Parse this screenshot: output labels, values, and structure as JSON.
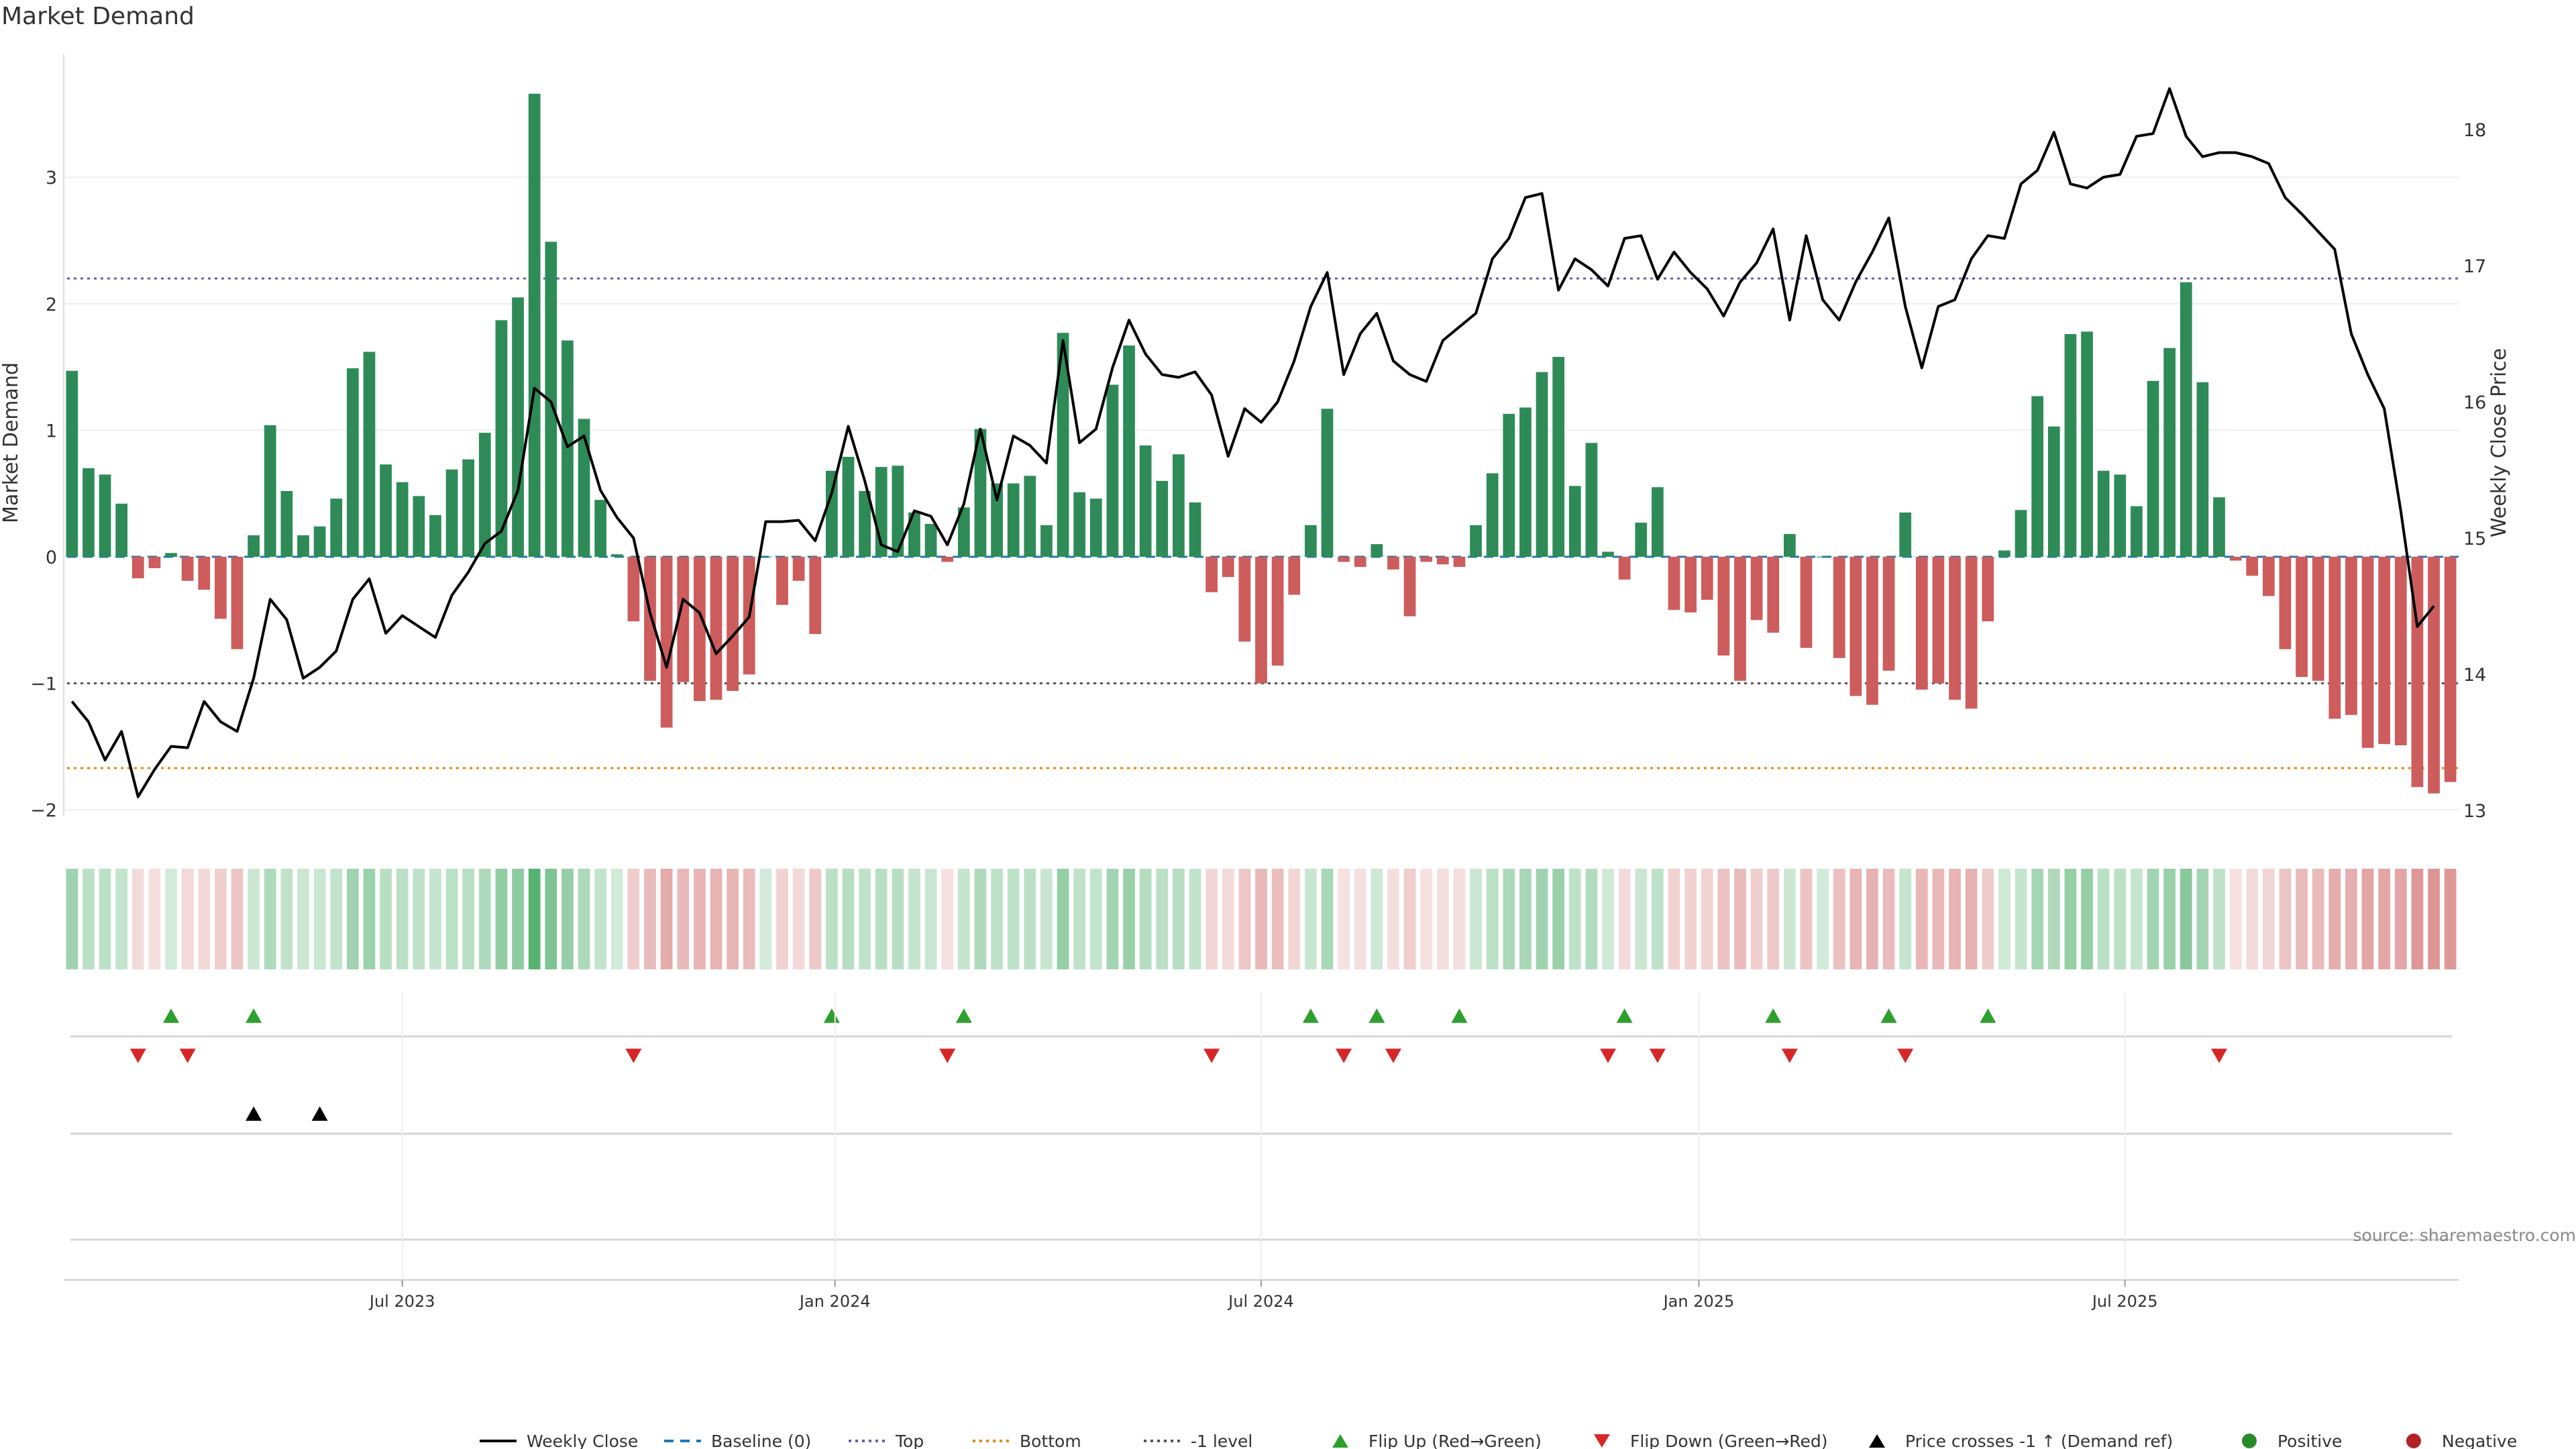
{
  "chart_data": {
    "type": "bar",
    "title": "Market Demand",
    "ylabel": "Market Demand",
    "y2label": "Weekly Close Price",
    "ylim": [
      -2.0,
      3.75
    ],
    "y2lim": [
      13.0,
      18.6
    ],
    "yticks": [
      "3",
      "2",
      "1",
      "0",
      "−1",
      "−2"
    ],
    "ytick_values": [
      3,
      2,
      1,
      0,
      -1,
      -2
    ],
    "y2ticks": [
      "18",
      "17",
      "16",
      "15",
      "14",
      "13"
    ],
    "y2tick_values": [
      18,
      17,
      16,
      15,
      14,
      13
    ],
    "xticks": [
      "Jul 2023",
      "Jan 2024",
      "Jul 2024",
      "Jan 2025",
      "Jul 2025"
    ],
    "xtick_positions": [
      20.5,
      46.7,
      72.5,
      99,
      124.8
    ],
    "reference_lines": {
      "top": 2.2,
      "bottom": -1.67,
      "minus_one": -1.0,
      "baseline": 0
    },
    "demand": [
      1.47,
      0.7,
      0.65,
      0.42,
      -0.17,
      -0.09,
      0.03,
      -0.19,
      -0.26,
      -0.49,
      -0.73,
      0.17,
      1.04,
      0.52,
      0.17,
      0.24,
      0.46,
      1.49,
      1.62,
      0.73,
      0.59,
      0.48,
      0.33,
      0.69,
      0.77,
      0.98,
      1.87,
      2.05,
      3.66,
      2.49,
      1.71,
      1.09,
      0.45,
      0.02,
      -0.51,
      -0.98,
      -1.35,
      -0.99,
      -1.14,
      -1.13,
      -1.06,
      -0.93,
      0.0,
      -0.38,
      -0.19,
      -0.61,
      0.68,
      0.79,
      0.52,
      0.71,
      0.72,
      0.35,
      0.26,
      -0.04,
      0.39,
      1.01,
      0.58,
      0.58,
      0.64,
      0.25,
      1.77,
      0.51,
      0.46,
      1.36,
      1.67,
      0.88,
      0.6,
      0.81,
      0.43,
      -0.28,
      -0.16,
      -0.67,
      -1.0,
      -0.86,
      -0.3,
      0.25,
      1.17,
      -0.04,
      -0.08,
      0.1,
      -0.1,
      -0.47,
      -0.04,
      -0.06,
      -0.08,
      0.25,
      0.66,
      1.13,
      1.18,
      1.46,
      1.58,
      0.56,
      0.9,
      0.04,
      -0.18,
      0.27,
      0.55,
      -0.42,
      -0.44,
      -0.34,
      -0.78,
      -0.98,
      -0.5,
      -0.6,
      0.18,
      -0.72,
      0.0,
      -0.8,
      -1.1,
      -1.17,
      -0.9,
      0.35,
      -1.05,
      -1.0,
      -1.13,
      -1.2,
      -0.51,
      0.05,
      0.37,
      1.27,
      1.03,
      1.76,
      1.78,
      0.68,
      0.65,
      0.4,
      1.39,
      1.65,
      2.17,
      1.38,
      0.47,
      -0.03,
      -0.15,
      -0.31,
      -0.73,
      -0.95,
      -0.98,
      -1.28,
      -1.25,
      -1.51,
      -1.48,
      -1.49,
      -1.82,
      -1.87,
      -1.78
    ],
    "weekly_close": [
      13.8,
      13.65,
      13.37,
      13.58,
      13.1,
      13.3,
      13.47,
      13.46,
      13.8,
      13.65,
      13.58,
      13.97,
      14.55,
      14.4,
      13.97,
      14.05,
      14.17,
      14.55,
      14.7,
      14.3,
      14.43,
      14.35,
      14.27,
      14.58,
      14.75,
      14.96,
      15.05,
      15.35,
      16.1,
      16.0,
      15.67,
      15.75,
      15.35,
      15.15,
      15.0,
      14.45,
      14.05,
      14.55,
      14.45,
      14.15,
      14.28,
      14.42,
      15.12,
      15.12,
      15.13,
      14.98,
      15.33,
      15.82,
      15.42,
      14.95,
      14.9,
      15.2,
      15.16,
      14.95,
      15.25,
      15.8,
      15.28,
      15.75,
      15.68,
      15.55,
      16.45,
      15.7,
      15.8,
      16.25,
      16.6,
      16.35,
      16.2,
      16.18,
      16.22,
      16.05,
      15.6,
      15.95,
      15.85,
      16.0,
      16.3,
      16.7,
      16.95,
      16.2,
      16.5,
      16.65,
      16.3,
      16.2,
      16.15,
      16.45,
      16.55,
      16.65,
      17.05,
      17.2,
      17.5,
      17.53,
      16.82,
      17.05,
      16.97,
      16.85,
      17.2,
      17.22,
      16.9,
      17.1,
      16.95,
      16.83,
      16.63,
      16.88,
      17.02,
      17.27,
      16.6,
      17.22,
      16.75,
      16.6,
      16.88,
      17.1,
      17.35,
      16.7,
      16.25,
      16.7,
      16.75,
      17.05,
      17.22,
      17.2,
      17.6,
      17.7,
      17.98,
      17.6,
      17.57,
      17.65,
      17.67,
      17.95,
      17.97,
      18.3,
      17.95,
      17.8,
      17.83,
      17.83,
      17.8,
      17.75,
      17.5,
      17.38,
      17.25,
      17.12,
      16.5,
      16.2,
      15.95,
      15.2,
      14.35,
      14.5
    ],
    "flip_up_weeks": [
      6,
      11,
      46,
      54,
      75,
      79,
      84,
      94,
      103,
      110,
      116
    ],
    "flip_down_weeks": [
      4,
      7,
      34,
      53,
      69,
      77,
      80,
      93,
      96,
      104,
      111,
      130
    ],
    "price_cross_weeks": [
      11,
      15
    ],
    "watermark": "source: sharemaestro.com",
    "colors": {
      "positive": "#2e8b57",
      "negative": "#cd5c5c",
      "close": "#000000",
      "baseline": "#1f77b4",
      "top": "#6b5bb5",
      "bottom": "#e08a00",
      "minus_one": "#555555",
      "flip_up": "#2ca02c",
      "flip_down": "#d62728",
      "cross": "#000000"
    },
    "legend_position": "bottom-center",
    "legend": [
      "Weekly Close",
      "Baseline (0)",
      "Top",
      "Bottom",
      "-1 level",
      "Flip Up (Red→Green)",
      "Flip Down (Green→Red)",
      "Price crosses -1 ↑ (Demand ref)",
      "Positive",
      "Negative"
    ]
  }
}
